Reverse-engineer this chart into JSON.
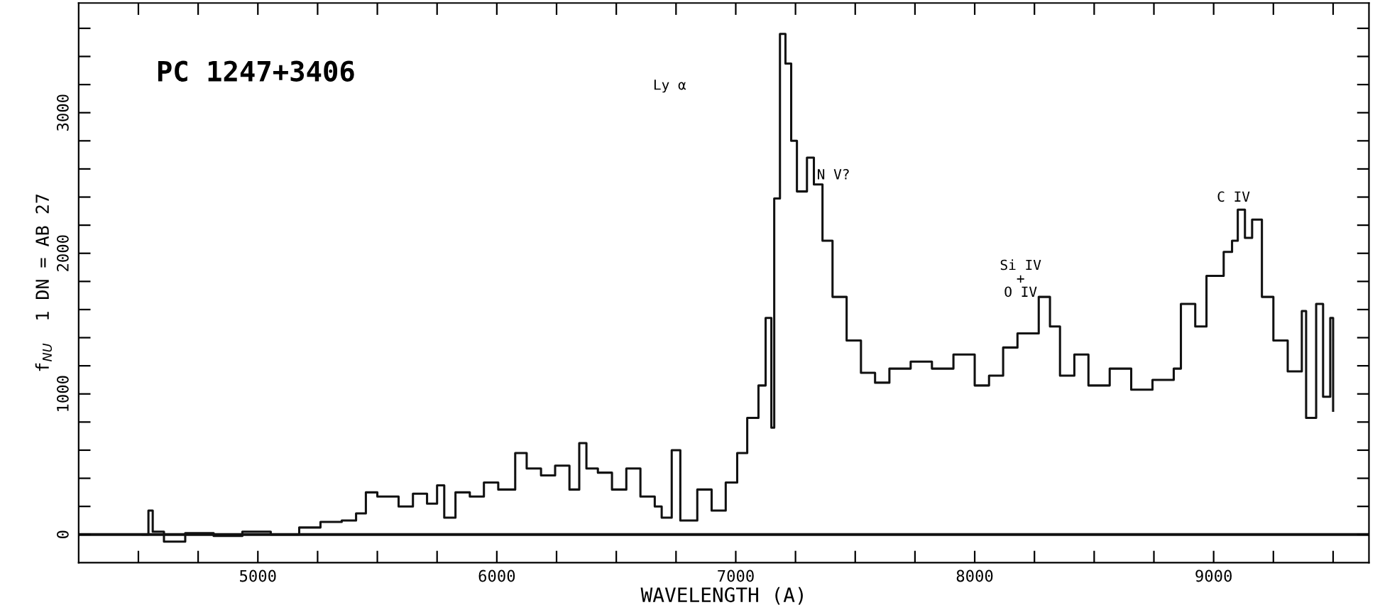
{
  "chart_data": {
    "type": "step",
    "xlabel": "WAVELENGTH (A)",
    "ylabel": "f$_{NU}$  1 DN = AB 27",
    "annotations": [
      "PC 1247+3406",
      "Ly α",
      "N V?",
      "Si IV\n+\nO IV",
      "C IV"
    ],
    "series": [
      {
        "color": "#111111",
        "x": [
          4518,
          4542,
          4560,
          4607,
          4696,
          4815,
          4935,
          5054,
          5173,
          5262,
          5351,
          5411,
          5452,
          5500,
          5589,
          5649,
          5708,
          5750,
          5780,
          5827,
          5887,
          5946,
          6006,
          6077,
          6125,
          6185,
          6244,
          6304,
          6345,
          6375,
          6423,
          6482,
          6542,
          6601,
          6661,
          6690,
          6732,
          6768,
          6839,
          6899,
          6958,
          7006,
          7048,
          7095,
          7125,
          7149,
          7161,
          7185,
          7208,
          7232,
          7256,
          7298,
          7327,
          7363,
          7405,
          7464,
          7524,
          7583,
          7643,
          7732,
          7821,
          7911,
          8000,
          8060,
          8119,
          8179,
          8268,
          8315,
          8357,
          8417,
          8476,
          8565,
          8655,
          8744,
          8833,
          8863,
          8923,
          8970,
          9042,
          9077,
          9101,
          9131,
          9161,
          9202,
          9250,
          9310,
          9369,
          9387,
          9429,
          9458,
          9488,
          9500
        ],
        "values": [
          0,
          170,
          20,
          -50,
          10,
          -10,
          20,
          0,
          50,
          90,
          100,
          150,
          300,
          270,
          200,
          290,
          220,
          350,
          120,
          300,
          270,
          370,
          320,
          580,
          470,
          420,
          490,
          320,
          650,
          470,
          440,
          320,
          470,
          270,
          200,
          120,
          600,
          100,
          320,
          170,
          370,
          580,
          830,
          1060,
          1540,
          760,
          2390,
          3560,
          3350,
          2800,
          2440,
          2680,
          2490,
          2090,
          1690,
          1380,
          1150,
          1080,
          1180,
          1230,
          1180,
          1280,
          1060,
          1130,
          1330,
          1430,
          1690,
          1480,
          1130,
          1280,
          1060,
          1180,
          1030,
          1100,
          1180,
          1640,
          1480,
          1840,
          2010,
          2090,
          2310,
          2110,
          2240,
          1690,
          1380,
          1160,
          1590,
          830,
          1640,
          980,
          1540,
          880
        ]
      }
    ],
    "xlim": [
      4250,
      9650
    ],
    "ylim": [
      -200,
      3780
    ],
    "xticks": [
      {
        "value": 4500,
        "label": null
      },
      {
        "value": 4750,
        "label": null
      },
      5000,
      {
        "value": 5250,
        "label": null
      },
      {
        "value": 5500,
        "label": null
      },
      {
        "value": 5750,
        "label": null
      },
      6000,
      {
        "value": 6250,
        "label": null
      },
      {
        "value": 6500,
        "label": null
      },
      {
        "value": 6750,
        "label": null
      },
      7000,
      {
        "value": 7250,
        "label": null
      },
      {
        "value": 7500,
        "label": null
      },
      {
        "value": 7750,
        "label": null
      },
      8000,
      {
        "value": 8250,
        "label": null
      },
      {
        "value": 8500,
        "label": null
      },
      {
        "value": 8750,
        "label": null
      },
      9000,
      {
        "value": 9250,
        "label": null
      },
      {
        "value": 9500,
        "label": null
      }
    ],
    "yticks": [
      0,
      {
        "value": 200,
        "label": null
      },
      {
        "value": 400,
        "label": null
      },
      {
        "value": 600,
        "label": null
      },
      {
        "value": 800,
        "label": null
      },
      1000,
      {
        "value": 1200,
        "label": null
      },
      {
        "value": 1400,
        "label": null
      },
      {
        "value": 1600,
        "label": null
      },
      {
        "value": 1800,
        "label": null
      },
      2000,
      {
        "value": 2200,
        "label": null
      },
      {
        "value": 2400,
        "label": null
      },
      {
        "value": 2600,
        "label": null
      },
      {
        "value": 2800,
        "label": null
      },
      3000,
      {
        "value": 3200,
        "label": null
      },
      {
        "value": 3400,
        "label": null
      },
      {
        "value": 3600,
        "label": null
      }
    ],
    "ref_lines": [
      {
        "axis": "y",
        "value": 0,
        "color": "#111111"
      }
    ],
    "grid": false,
    "legend": false,
    "line_style": "solid"
  }
}
